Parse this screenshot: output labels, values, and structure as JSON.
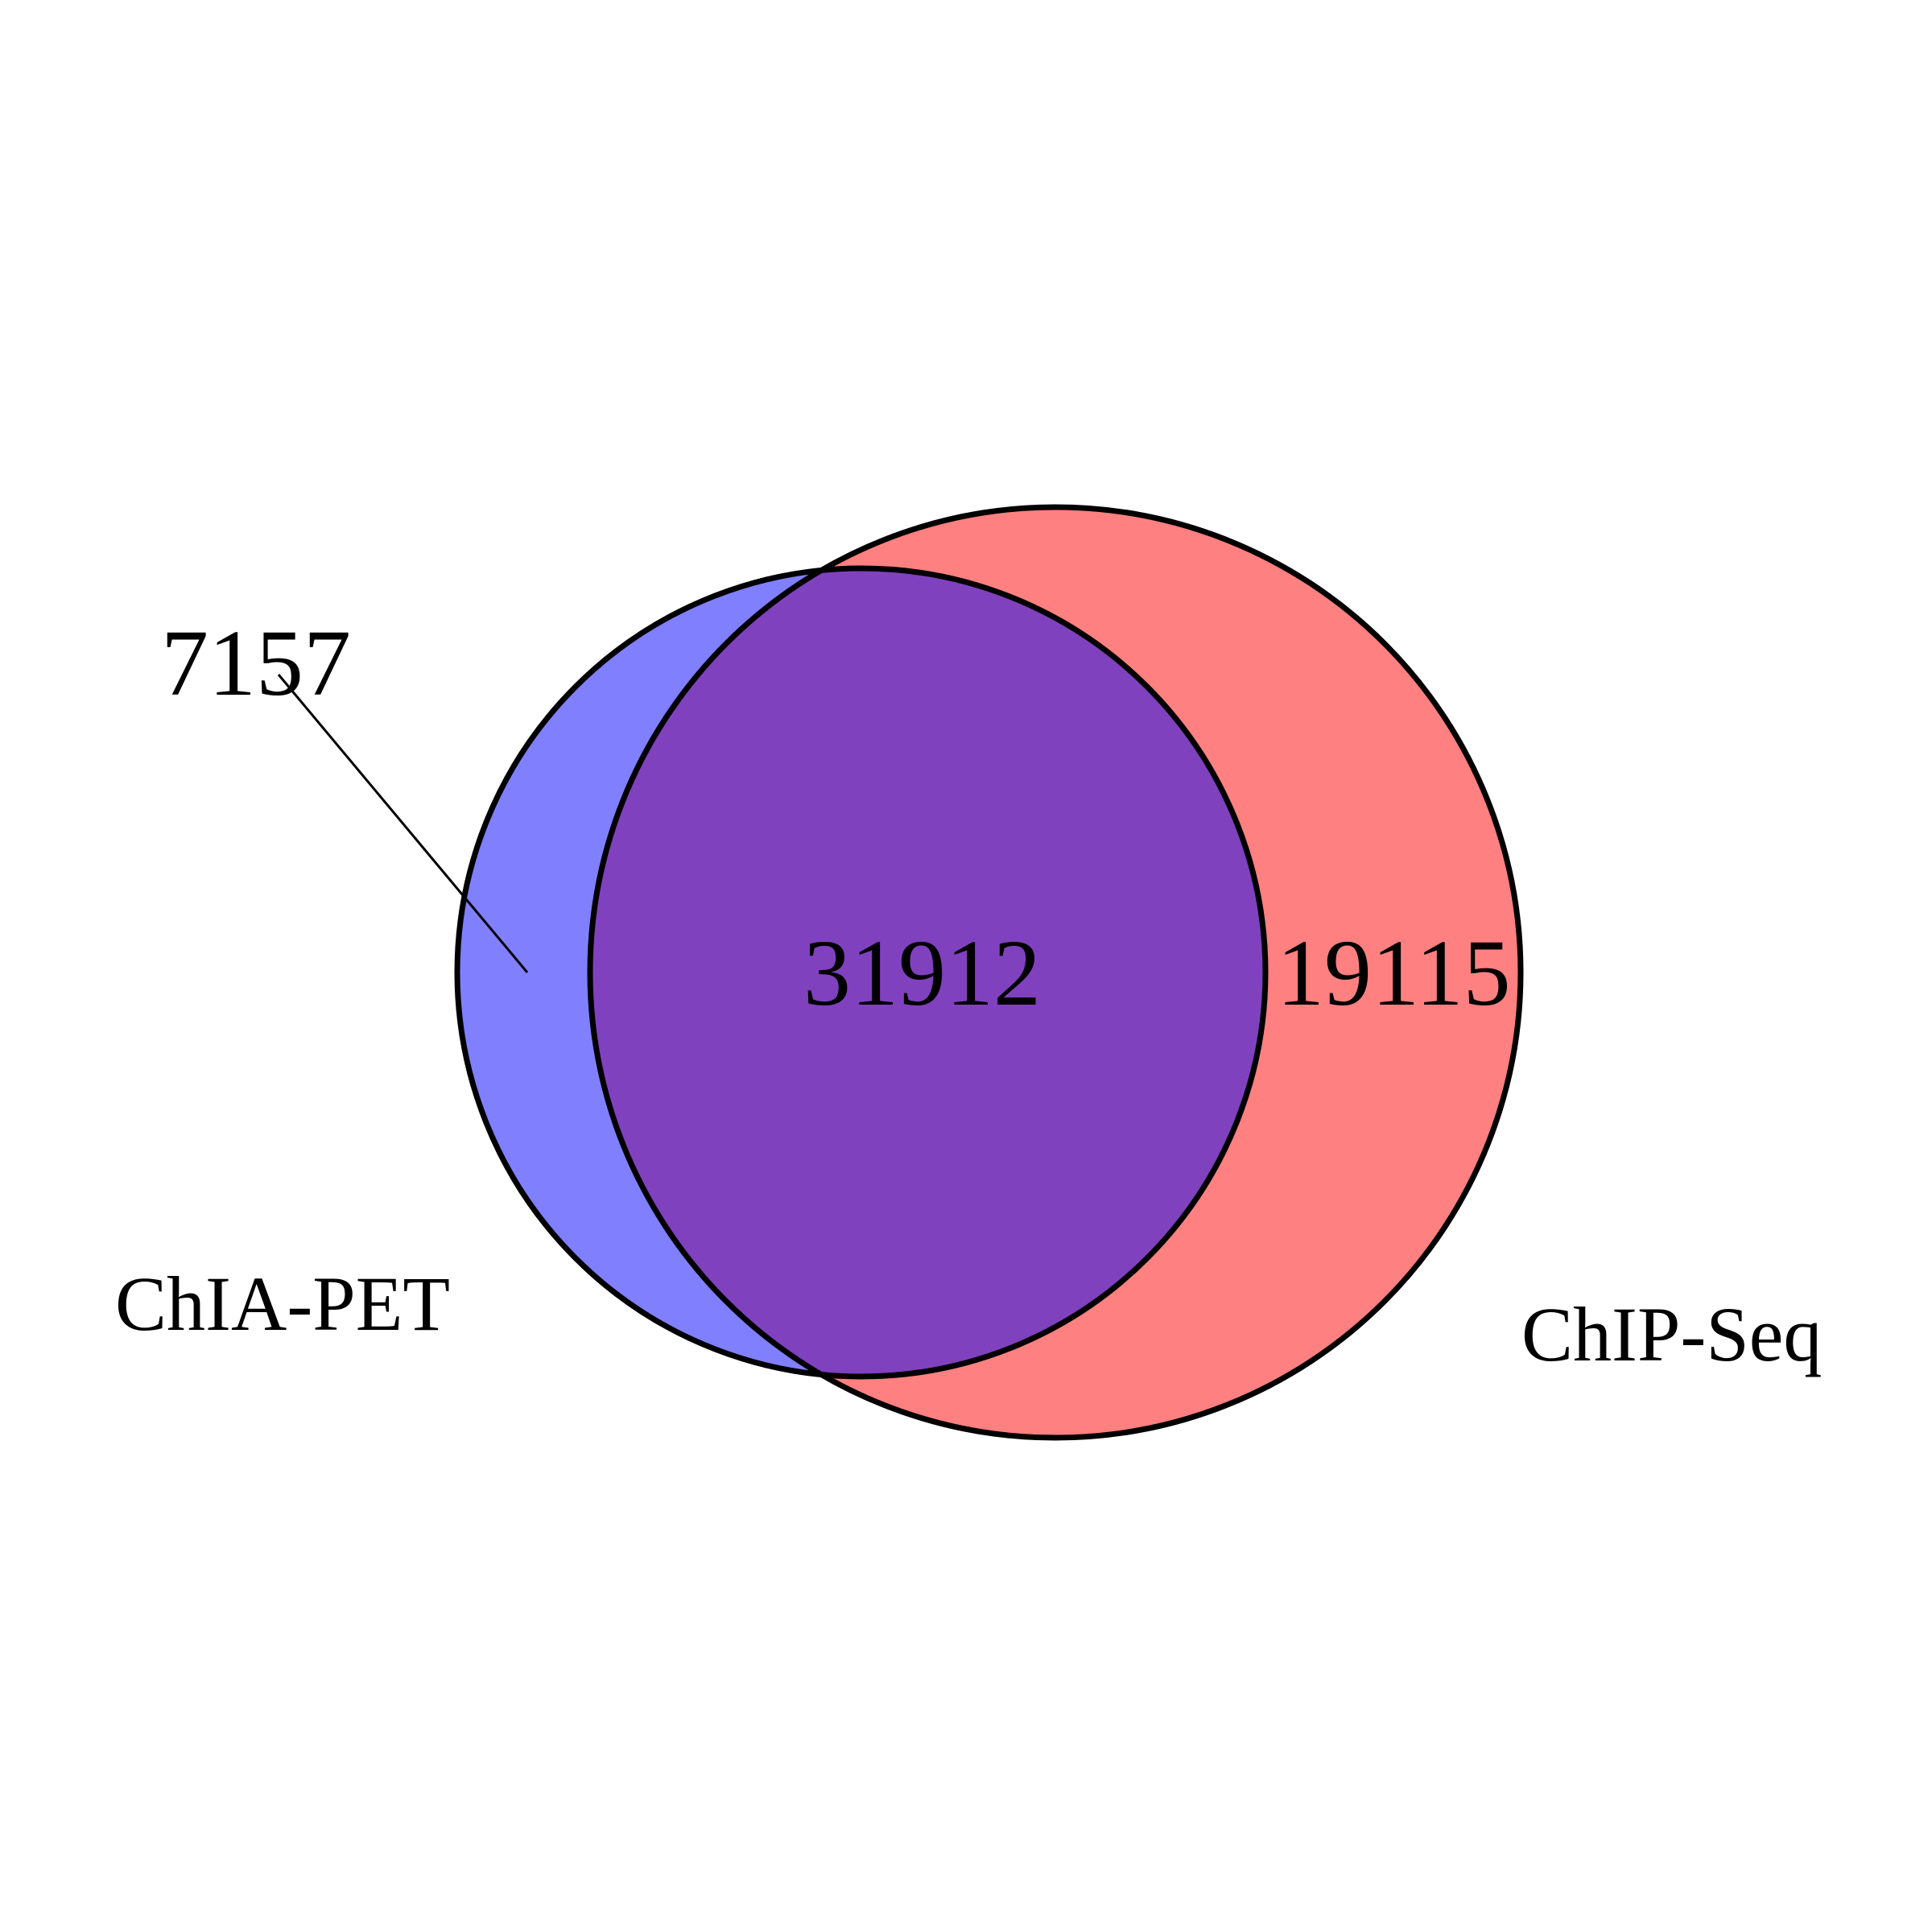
{
  "sets": [
    {
      "key": "A",
      "label": "ChIA-PET",
      "color": "#8080ff"
    },
    {
      "key": "B",
      "label": "ChIP-Seq",
      "color": "#ff8080"
    }
  ],
  "overlap_color": "#8041bf",
  "outline_color": "#000000",
  "counts": {
    "only_a": "7157",
    "both": "31912",
    "only_b": "19115"
  }
}
